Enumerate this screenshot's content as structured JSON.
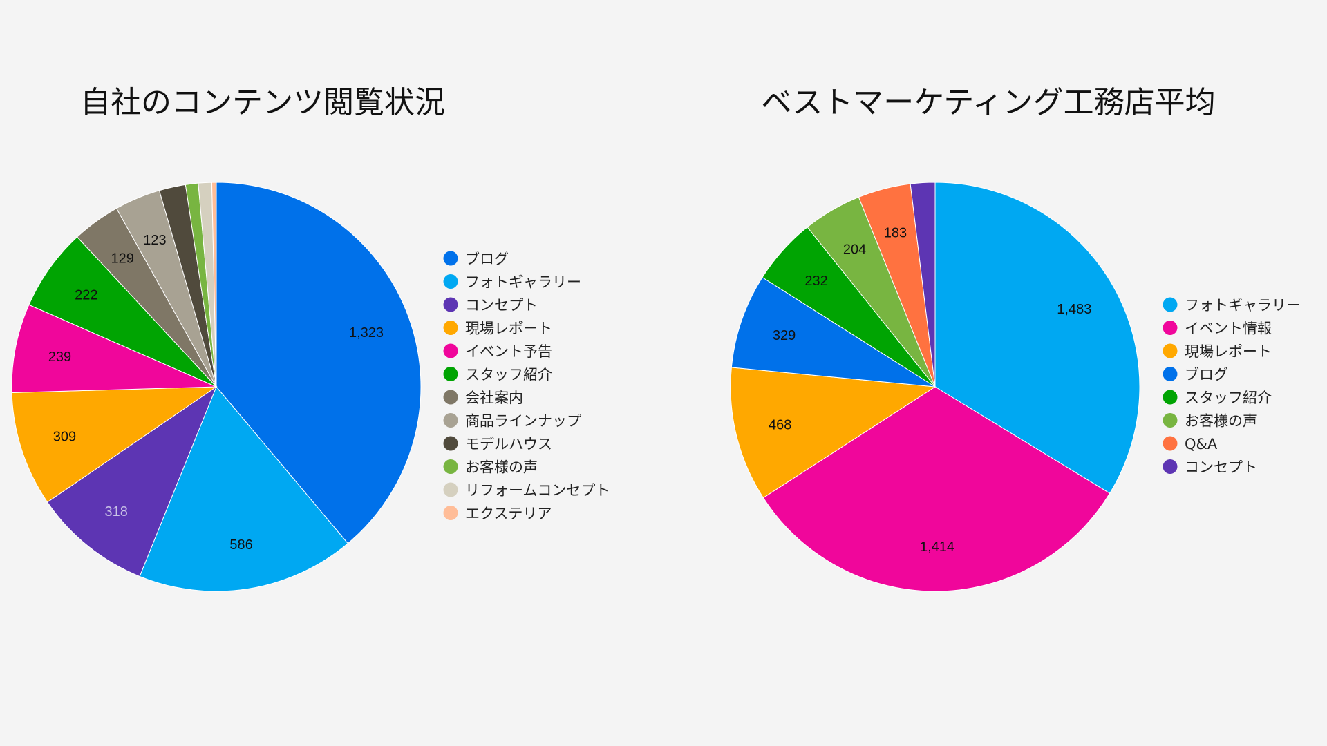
{
  "chart_data": [
    {
      "type": "pie",
      "title": "自社のコンテンツ閲覧状況",
      "legend_position": "right",
      "slices": [
        {
          "name": "ブログ",
          "value": 1323,
          "label": "1,323",
          "color": "#0071ea",
          "label_color": "#111111"
        },
        {
          "name": "フォトギャラリー",
          "value": 586,
          "label": "586",
          "color": "#00a8f2",
          "label_color": "#111111"
        },
        {
          "name": "コンセプト",
          "value": 318,
          "label": "318",
          "color": "#5d35b3",
          "label_color": "#c9c2e6"
        },
        {
          "name": "現場レポート",
          "value": 309,
          "label": "309",
          "color": "#ffa800",
          "label_color": "#111111"
        },
        {
          "name": "イベント予告",
          "value": 239,
          "label": "239",
          "color": "#f0069b",
          "label_color": "#111111"
        },
        {
          "name": "スタッフ紹介",
          "value": 222,
          "label": "222",
          "color": "#00a402",
          "label_color": "#111111"
        },
        {
          "name": "会社案内",
          "value": 129,
          "label": "129",
          "color": "#7f7766",
          "label_color": "#111111"
        },
        {
          "name": "商品ラインナップ",
          "value": 123,
          "label": "123",
          "color": "#a8a293",
          "label_color": "#111111"
        },
        {
          "name": "モデルハウス",
          "value": 71,
          "label": "",
          "color": "#504a3c",
          "label_color": "#111111"
        },
        {
          "name": "お客様の声",
          "value": 34,
          "label": "",
          "color": "#78b541",
          "label_color": "#111111"
        },
        {
          "name": "リフォームコンセプト",
          "value": 36,
          "label": "",
          "color": "#d5d0bf",
          "label_color": "#111111"
        },
        {
          "name": "エクステリア",
          "value": 12,
          "label": "",
          "color": "#ffbd98",
          "label_color": "#111111"
        }
      ]
    },
    {
      "type": "pie",
      "title": "ベストマーケティング工務店平均",
      "legend_position": "right",
      "slices": [
        {
          "name": "フォトギャラリー",
          "value": 1483,
          "label": "1,483",
          "color": "#00a8f2",
          "label_color": "#111111"
        },
        {
          "name": "イベント情報",
          "value": 1414,
          "label": "1,414",
          "color": "#f0069b",
          "label_color": "#111111"
        },
        {
          "name": "現場レポート",
          "value": 468,
          "label": "468",
          "color": "#ffa800",
          "label_color": "#111111"
        },
        {
          "name": "ブログ",
          "value": 329,
          "label": "329",
          "color": "#0071ea",
          "label_color": "#111111"
        },
        {
          "name": "スタッフ紹介",
          "value": 232,
          "label": "232",
          "color": "#00a402",
          "label_color": "#111111"
        },
        {
          "name": "お客様の声",
          "value": 204,
          "label": "204",
          "color": "#78b541",
          "label_color": "#111111"
        },
        {
          "name": "Q&A",
          "value": 183,
          "label": "183",
          "color": "#ff7240",
          "label_color": "#111111"
        },
        {
          "name": "コンセプト",
          "value": 85,
          "label": "",
          "color": "#5d35b3",
          "label_color": "#111111"
        }
      ]
    }
  ]
}
